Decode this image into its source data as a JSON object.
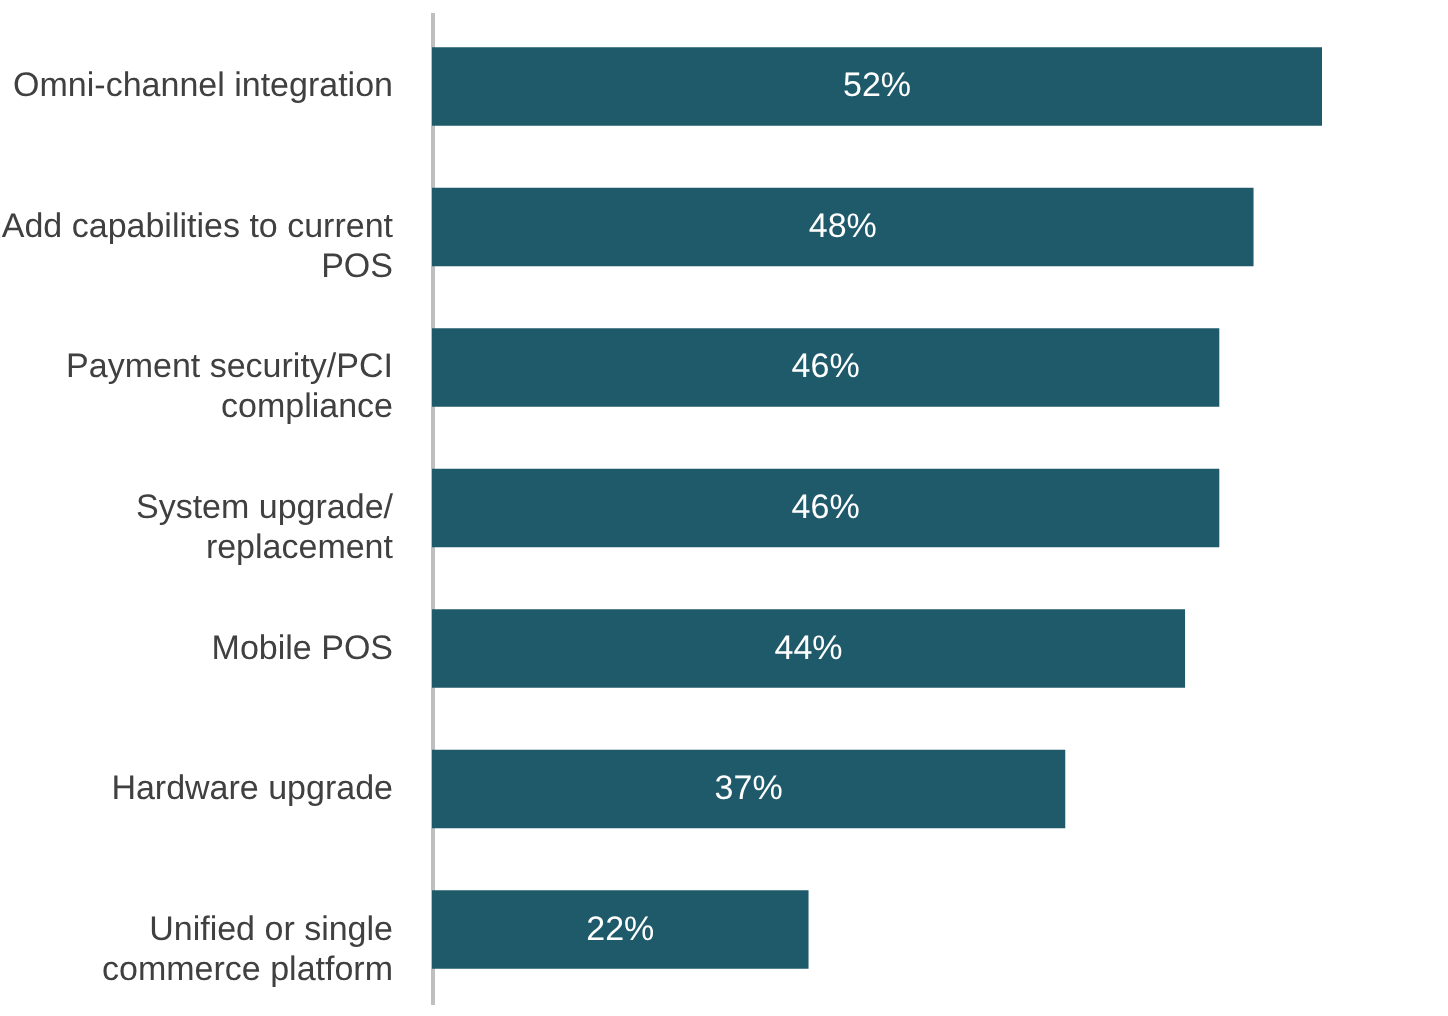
{
  "chart_data": {
    "type": "bar",
    "orientation": "horizontal",
    "categories": [
      "Omni-channel integration",
      "Add capabilities to current\nPOS",
      "Payment security/PCI\ncompliance",
      "System upgrade/\nreplacement",
      "Mobile POS",
      "Hardware upgrade",
      "Unified or single\ncommerce platform"
    ],
    "values": [
      52,
      48,
      46,
      46,
      44,
      37,
      22
    ],
    "value_labels": [
      "52%",
      "48%",
      "46%",
      "46%",
      "44%",
      "37%",
      "22%"
    ],
    "color": "#1f5a6b"
  }
}
